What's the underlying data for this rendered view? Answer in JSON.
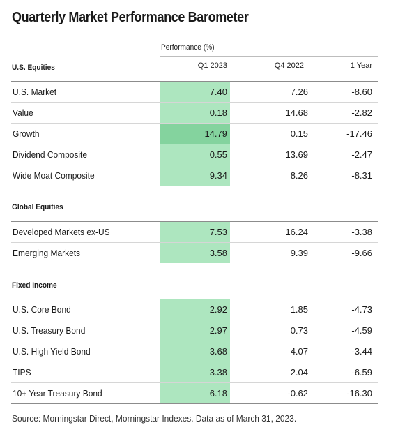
{
  "title": "Quarterly Market Performance Barometer",
  "performance_label": "Performance (%)",
  "columns": [
    "Q1 2023",
    "Q4 2022",
    "1 Year"
  ],
  "colors": {
    "highlight": "#ade6bf",
    "highlight_strong": "#84d39e"
  },
  "sections": [
    {
      "name": "U.S. Equities",
      "rows": [
        {
          "label": "U.S. Market",
          "q1": "7.40",
          "q4": "7.26",
          "y1": "-8.60"
        },
        {
          "label": "Value",
          "q1": "0.18",
          "q4": "14.68",
          "y1": "-2.82"
        },
        {
          "label": "Growth",
          "q1": "14.79",
          "q4": "0.15",
          "y1": "-17.46",
          "strong": true
        },
        {
          "label": "Dividend Composite",
          "q1": "0.55",
          "q4": "13.69",
          "y1": "-2.47"
        },
        {
          "label": "Wide Moat Composite",
          "q1": "9.34",
          "q4": "8.26",
          "y1": "-8.31"
        }
      ]
    },
    {
      "name": "Global Equities",
      "rows": [
        {
          "label": "Developed Markets ex-US",
          "q1": "7.53",
          "q4": "16.24",
          "y1": "-3.38"
        },
        {
          "label": "Emerging Markets",
          "q1": "3.58",
          "q4": "9.39",
          "y1": "-9.66"
        }
      ]
    },
    {
      "name": "Fixed Income",
      "rows": [
        {
          "label": "U.S. Core Bond",
          "q1": "2.92",
          "q4": "1.85",
          "y1": "-4.73"
        },
        {
          "label": "U.S. Treasury Bond",
          "q1": "2.97",
          "q4": "0.73",
          "y1": "-4.59"
        },
        {
          "label": "U.S. High Yield Bond",
          "q1": "3.68",
          "q4": "4.07",
          "y1": "-3.44"
        },
        {
          "label": "TIPS",
          "q1": "3.38",
          "q4": "2.04",
          "y1": "-6.59"
        },
        {
          "label": "10+ Year Treasury Bond",
          "q1": "6.18",
          "q4": "-0.62",
          "y1": "-16.30"
        }
      ]
    }
  ],
  "source": "Source: Morningstar Direct, Morningstar Indexes. Data as of March 31, 2023."
}
